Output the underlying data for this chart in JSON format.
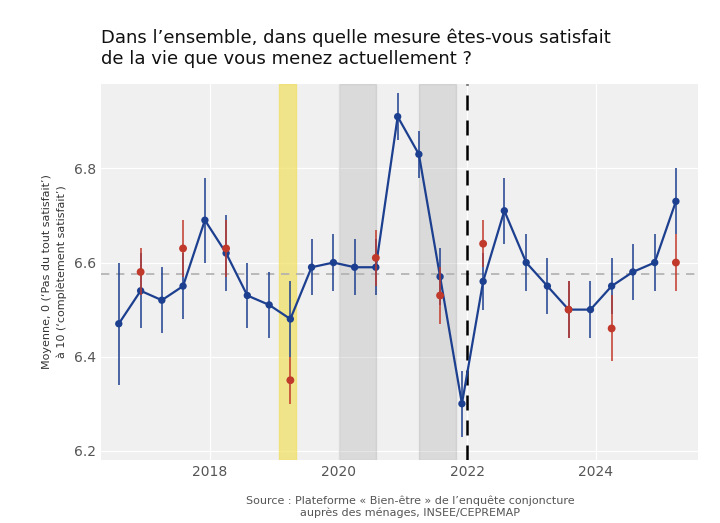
{
  "title": "Dans l’ensemble, dans quelle mesure êtes-vous satisfait\nde la vie que vous menez actuellement ?",
  "ylabel": "Moyenne, 0 (‘Pas du tout satisfait’)\nà 10 (‘complètement satisfait’)",
  "source": "Source : Plateforme « Bien-être » de l’enquête conjoncture\nauprès des ménages, INSEE/CEPREMAP",
  "ylim": [
    6.18,
    6.98
  ],
  "xlim": [
    2016.3,
    2025.6
  ],
  "ref_line": 6.575,
  "dashed_vline_x": 2022.0,
  "yellow_band": [
    2019.08,
    2019.33
  ],
  "grey_band1": [
    2020.0,
    2020.58
  ],
  "grey_band2": [
    2021.25,
    2021.83
  ],
  "background_color": "#ffffff",
  "plot_bg_color": "#f0f0f0",
  "blue_color": "#1c3f8f",
  "red_color": "#c0392b",
  "ref_color": "#b0b0b0",
  "yellow_color": "#f0e060",
  "grey_color": "#999999",
  "blue_points": [
    [
      2016.58,
      6.47,
      0.13
    ],
    [
      2016.92,
      6.54,
      0.08
    ],
    [
      2017.25,
      6.52,
      0.07
    ],
    [
      2017.58,
      6.55,
      0.07
    ],
    [
      2017.92,
      6.69,
      0.09
    ],
    [
      2018.25,
      6.62,
      0.08
    ],
    [
      2018.58,
      6.53,
      0.07
    ],
    [
      2018.92,
      6.51,
      0.07
    ],
    [
      2019.25,
      6.48,
      0.08
    ],
    [
      2019.58,
      6.59,
      0.06
    ],
    [
      2019.92,
      6.6,
      0.06
    ],
    [
      2020.25,
      6.59,
      0.06
    ],
    [
      2020.58,
      6.59,
      0.06
    ],
    [
      2020.92,
      6.91,
      0.05
    ],
    [
      2021.25,
      6.83,
      0.05
    ],
    [
      2021.58,
      6.57,
      0.06
    ],
    [
      2021.92,
      6.3,
      0.07
    ],
    [
      2022.25,
      6.56,
      0.06
    ],
    [
      2022.58,
      6.71,
      0.07
    ],
    [
      2022.92,
      6.6,
      0.06
    ],
    [
      2023.25,
      6.55,
      0.06
    ],
    [
      2023.58,
      6.5,
      0.06
    ],
    [
      2023.92,
      6.5,
      0.06
    ],
    [
      2024.25,
      6.55,
      0.06
    ],
    [
      2024.58,
      6.58,
      0.06
    ],
    [
      2024.92,
      6.6,
      0.06
    ],
    [
      2025.25,
      6.73,
      0.07
    ]
  ],
  "red_points": [
    [
      2016.92,
      6.58,
      0.05
    ],
    [
      2017.58,
      6.63,
      0.06
    ],
    [
      2018.25,
      6.63,
      0.06
    ],
    [
      2019.25,
      6.35,
      0.05
    ],
    [
      2020.58,
      6.61,
      0.06
    ],
    [
      2021.58,
      6.53,
      0.06
    ],
    [
      2022.25,
      6.64,
      0.05
    ],
    [
      2023.58,
      6.5,
      0.06
    ],
    [
      2024.25,
      6.46,
      0.07
    ],
    [
      2025.25,
      6.6,
      0.06
    ]
  ],
  "xticks": [
    2018,
    2020,
    2022,
    2024
  ],
  "yticks": [
    6.2,
    6.4,
    6.6,
    6.8
  ],
  "tick_fontsize": 10,
  "ylabel_fontsize": 8,
  "title_fontsize": 13,
  "source_fontsize": 8
}
